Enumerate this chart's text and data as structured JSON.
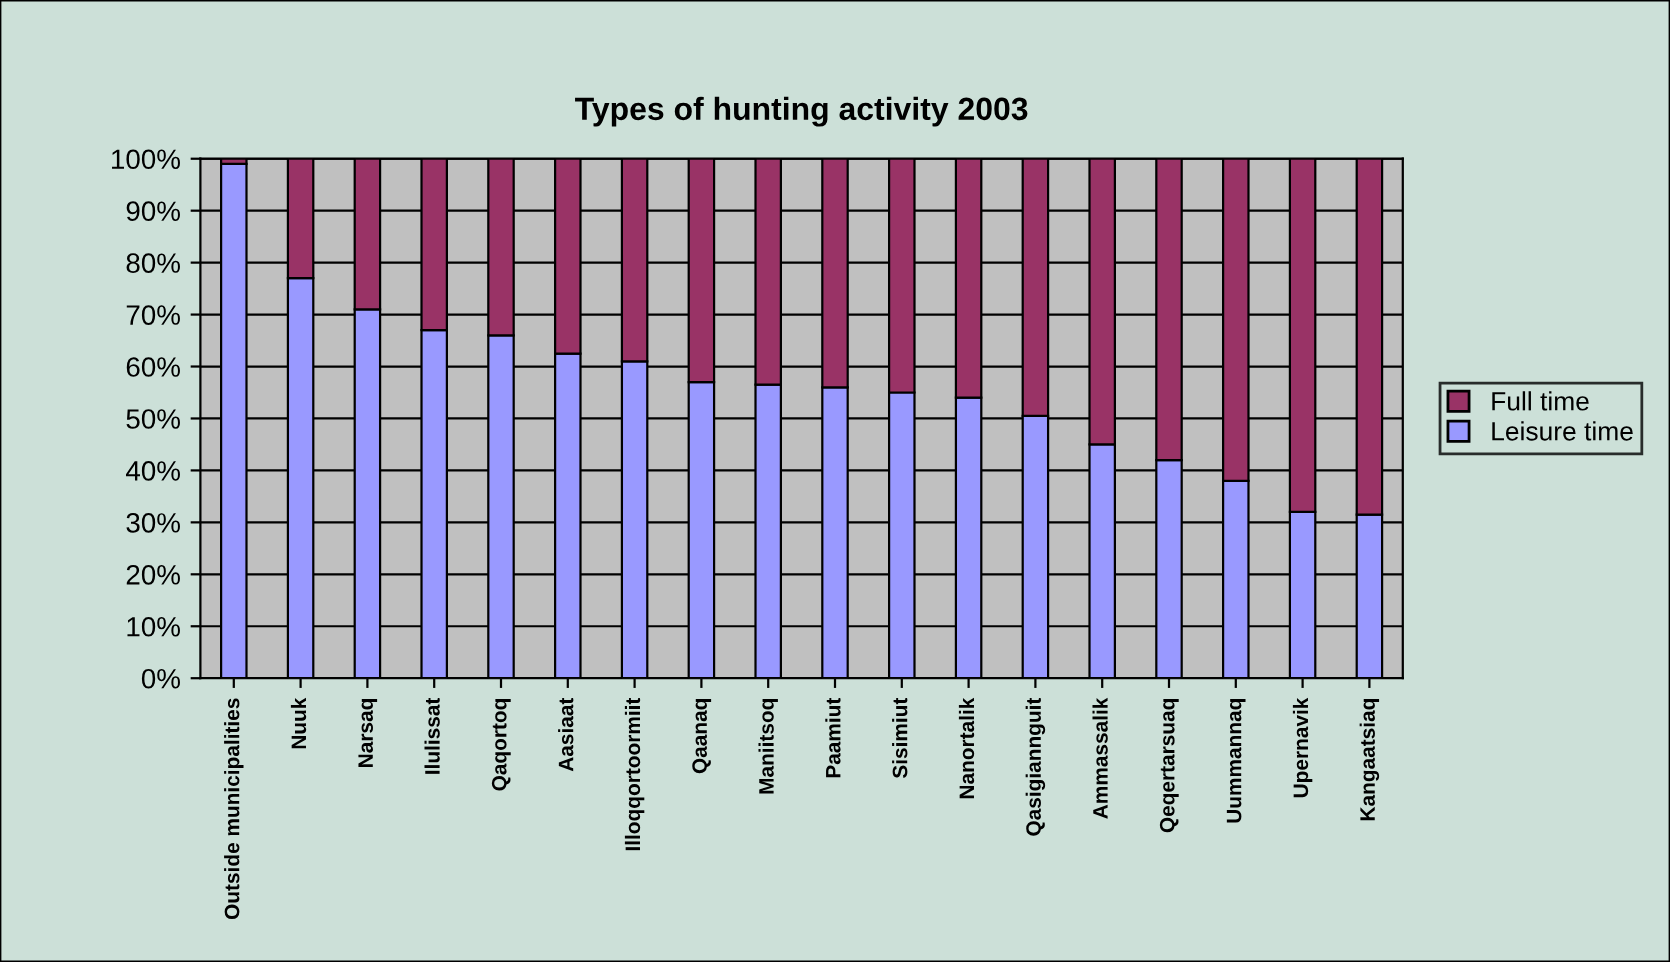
{
  "chart_data": {
    "type": "bar",
    "title": "Types of hunting activity 2003",
    "stacked": true,
    "categories": [
      "Outside municipalities",
      "Nuuk",
      "Narsaq",
      "Ilulissat",
      "Qaqortoq",
      "Aasiaat",
      "Illoqqortoormiit",
      "Qaanaq",
      "Maniitsoq",
      "Paamiut",
      "Sisimiut",
      "Nanortalik",
      "Qasigiannguit",
      "Ammassalik",
      "Qeqertarsuaq",
      "Uummannaq",
      "Upernavik",
      "Kangaatsiaq"
    ],
    "series": [
      {
        "name": "Leisure time",
        "color": "#9999ff",
        "values": [
          99,
          77,
          71,
          67,
          66,
          62.5,
          61,
          57,
          56.5,
          56,
          55,
          54,
          50.5,
          45,
          42,
          38,
          32,
          31.5
        ]
      },
      {
        "name": "Full time",
        "color": "#993366",
        "values": [
          1,
          23,
          29,
          33,
          34,
          37.5,
          39,
          43,
          43.5,
          44,
          45,
          46,
          49.5,
          55,
          58,
          62,
          68,
          68.5
        ]
      }
    ],
    "ylim": [
      0,
      100
    ],
    "yticks": [
      {
        "value": 0,
        "label": "0%"
      },
      {
        "value": 10,
        "label": "10%"
      },
      {
        "value": 20,
        "label": "20%"
      },
      {
        "value": 30,
        "label": "30%"
      },
      {
        "value": 40,
        "label": "40%"
      },
      {
        "value": 50,
        "label": "50%"
      },
      {
        "value": 60,
        "label": "60%"
      },
      {
        "value": 70,
        "label": "70%"
      },
      {
        "value": 80,
        "label": "80%"
      },
      {
        "value": 90,
        "label": "90%"
      },
      {
        "value": 100,
        "label": "100%"
      }
    ],
    "grid": "y",
    "legend": "right"
  }
}
